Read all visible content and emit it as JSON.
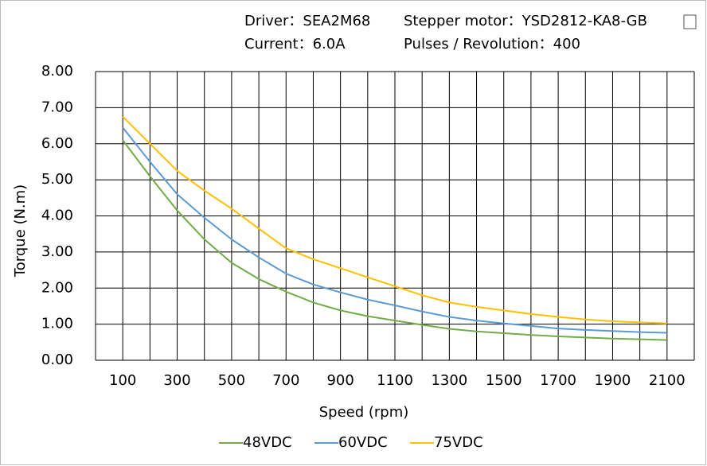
{
  "chart_data": {
    "type": "line",
    "annotations": [
      "Driver：SEA2M68",
      "Stepper motor：YSD2812-KA8-GB",
      "Current：6.0A",
      "Pulses / Revolution：400"
    ],
    "xlabel": "Speed  (rpm)",
    "ylabel": "Torque (N.m)",
    "x": [
      100,
      200,
      300,
      400,
      500,
      600,
      700,
      800,
      900,
      1000,
      1100,
      1200,
      1300,
      1400,
      1500,
      1600,
      1700,
      1800,
      1900,
      2000,
      2100
    ],
    "series": [
      {
        "name": "48VDC",
        "color": "#70ad47",
        "values": [
          6.1,
          5.1,
          4.15,
          3.35,
          2.7,
          2.25,
          1.9,
          1.6,
          1.38,
          1.22,
          1.1,
          0.98,
          0.87,
          0.8,
          0.75,
          0.7,
          0.66,
          0.63,
          0.6,
          0.58,
          0.56
        ]
      },
      {
        "name": "60VDC",
        "color": "#5b9bd5",
        "values": [
          6.45,
          5.5,
          4.6,
          3.95,
          3.35,
          2.85,
          2.4,
          2.1,
          1.88,
          1.68,
          1.52,
          1.35,
          1.2,
          1.1,
          1.02,
          0.95,
          0.88,
          0.84,
          0.81,
          0.78,
          0.76
        ]
      },
      {
        "name": "75VDC",
        "color": "#ffc000",
        "values": [
          6.75,
          6.0,
          5.25,
          4.7,
          4.2,
          3.65,
          3.1,
          2.8,
          2.55,
          2.3,
          2.05,
          1.8,
          1.6,
          1.48,
          1.38,
          1.28,
          1.2,
          1.13,
          1.08,
          1.05,
          1.02
        ]
      }
    ],
    "xlim": [
      0,
      2200
    ],
    "xticks": [
      100,
      300,
      500,
      700,
      900,
      1100,
      1300,
      1500,
      1700,
      1900,
      2100
    ],
    "x_grid_lines": [
      0,
      100,
      200,
      300,
      400,
      500,
      600,
      700,
      800,
      900,
      1000,
      1100,
      1200,
      1300,
      1400,
      1500,
      1600,
      1700,
      1800,
      1900,
      2000,
      2100,
      2200
    ],
    "ylim": [
      0,
      8
    ],
    "yticks": [
      {
        "value": 0,
        "label": "0.00"
      },
      {
        "value": 1,
        "label": "1.00"
      },
      {
        "value": 2,
        "label": "2.00"
      },
      {
        "value": 3,
        "label": "3.00"
      },
      {
        "value": 4,
        "label": "4.00"
      },
      {
        "value": 5,
        "label": "5.00"
      },
      {
        "value": 6,
        "label": "6.00"
      },
      {
        "value": 7,
        "label": "7.00"
      },
      {
        "value": 8,
        "label": "8.00"
      }
    ],
    "grid": true
  }
}
